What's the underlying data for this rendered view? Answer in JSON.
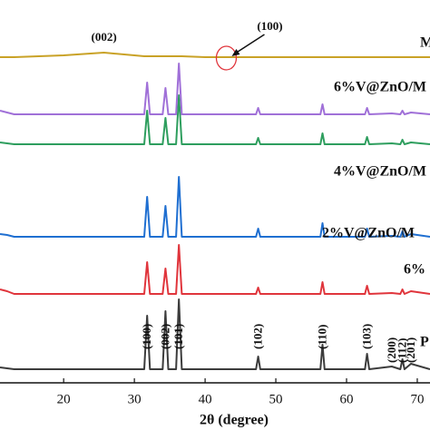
{
  "chart_data": {
    "type": "line",
    "x_label": "2θ (degree)",
    "xlim": [
      11,
      71.8
    ],
    "xticks": [
      20,
      30,
      40,
      50,
      60,
      70
    ],
    "x": [
      11,
      12,
      13,
      20,
      25.7,
      30,
      31.4,
      31.8,
      32.2,
      34.0,
      34.4,
      34.8,
      35.9,
      36.3,
      36.7,
      40,
      47.2,
      47.5,
      47.8,
      56.3,
      56.6,
      56.9,
      62.6,
      62.9,
      63.2,
      66.4,
      67.6,
      67.9,
      68.2,
      69.1,
      71.8
    ],
    "series": [
      {
        "name": "P",
        "color": "#3c3c3c",
        "values": [
          3,
          2,
          1,
          1,
          1,
          1,
          1,
          60,
          1,
          1,
          65,
          1,
          1,
          78,
          1,
          1,
          1,
          15,
          1,
          1,
          28,
          1,
          1,
          18,
          1,
          4,
          1,
          12,
          1,
          7,
          1
        ]
      },
      {
        "name": "6%",
        "color": "#e0353c",
        "values": [
          6,
          4,
          1,
          1,
          1,
          1,
          1,
          36,
          1,
          1,
          29,
          1,
          1,
          55,
          1,
          1,
          1,
          8,
          1,
          1,
          14,
          1,
          1,
          10,
          1,
          2,
          1,
          6,
          1,
          4,
          1
        ]
      },
      {
        "name": "2%V@ZnO/M",
        "color": "#1f6fd1",
        "values": [
          4,
          3,
          1,
          1,
          1,
          1,
          1,
          45,
          1,
          1,
          35,
          1,
          1,
          67,
          1,
          1,
          1,
          10,
          1,
          1,
          16,
          1,
          1,
          10,
          1,
          2,
          1,
          7,
          1,
          4,
          1
        ]
      },
      {
        "name": "4%V@ZnO/M",
        "color": "#2e9e5e",
        "values": [
          3,
          2,
          1,
          1,
          1,
          1,
          1,
          38,
          1,
          1,
          30,
          1,
          1,
          55,
          1,
          1,
          1,
          8,
          1,
          1,
          13,
          1,
          1,
          9,
          1,
          2,
          1,
          6,
          1,
          3,
          1
        ]
      },
      {
        "name": "6%V@ZnO/M",
        "color": "#a070d8",
        "values": [
          5,
          3,
          1,
          1,
          1,
          1,
          1,
          36,
          1,
          1,
          30,
          1,
          1,
          57,
          1,
          1,
          1,
          8,
          1,
          1,
          12,
          1,
          1,
          8,
          1,
          2,
          1,
          5,
          1,
          3,
          1
        ]
      },
      {
        "name": "M",
        "color": "#c9a227",
        "values": [
          0,
          0,
          0,
          2,
          5,
          2,
          1,
          1,
          1,
          1,
          1,
          1,
          1,
          1,
          1,
          0,
          0,
          0,
          0,
          0,
          0,
          0,
          0,
          0,
          0,
          0,
          0,
          0,
          0,
          0,
          0
        ]
      }
    ],
    "peak_labels": [
      {
        "text": "(100)",
        "x": 31.8
      },
      {
        "text": "(002)",
        "x": 34.4
      },
      {
        "text": "(101)",
        "x": 36.3
      },
      {
        "text": "(102)",
        "x": 47.5
      },
      {
        "text": "(110)",
        "x": 56.6
      },
      {
        "text": "(103)",
        "x": 62.9
      },
      {
        "text": "(200)",
        "x": 66.4
      },
      {
        "text": "(112)",
        "x": 67.9
      },
      {
        "text": "(201)",
        "x": 69.1
      }
    ],
    "m_labels": [
      {
        "text": "(002)",
        "x": 25.7
      },
      {
        "text": "(100)",
        "x": 43
      }
    ]
  }
}
